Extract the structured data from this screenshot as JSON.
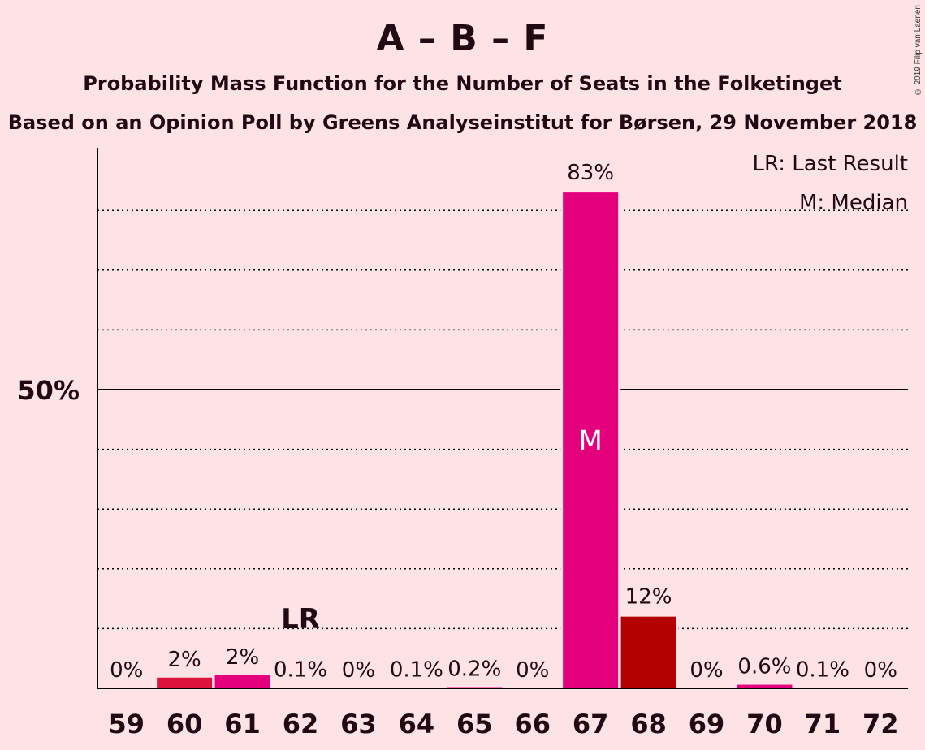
{
  "title": "A – B – F",
  "subtitle": "Probability Mass Function for the Number of Seats in the Folketinget",
  "source": "Based on an Opinion Poll by Greens Analyseinstitut for Børsen, 29 November 2018",
  "copyright": "© 2019 Filip van Laenen",
  "legend": {
    "last_result": "LR: Last Result",
    "median": "M: Median"
  },
  "colors": {
    "background": "#fde3e6",
    "bar_primary": "#e4007c",
    "bar_secondary": "#dc143c",
    "bar_dark": "#b30000",
    "axis": "#000000"
  },
  "chart_data": {
    "type": "bar",
    "categories": [
      "59",
      "60",
      "61",
      "62",
      "63",
      "64",
      "65",
      "66",
      "67",
      "68",
      "69",
      "70",
      "71",
      "72"
    ],
    "values": [
      0,
      1.8,
      2.2,
      0.1,
      0,
      0.1,
      0.2,
      0,
      83,
      12,
      0,
      0.6,
      0.1,
      0
    ],
    "labels": [
      "0%",
      "2%",
      "2%",
      "0.1%",
      "0%",
      "0.1%",
      "0.2%",
      "0%",
      "83%",
      "12%",
      "0%",
      "0.6%",
      "0.1%",
      "0%"
    ],
    "bar_colors": [
      "#e4007c",
      "#dc143c",
      "#e4007c",
      "#e4007c",
      "#e4007c",
      "#e4007c",
      "#e4007c",
      "#e4007c",
      "#e4007c",
      "#b30000",
      "#e4007c",
      "#e4007c",
      "#e4007c",
      "#e4007c"
    ],
    "ylim": [
      0,
      90
    ],
    "y_tick_label": "50%",
    "y_tick_value": 50,
    "gridlines": [
      10,
      20,
      30,
      40,
      60,
      70,
      80
    ],
    "median_seat": "67",
    "median_marker": "M",
    "last_result_seat": "62",
    "last_result_marker": "LR",
    "legend_position": "top-right"
  }
}
